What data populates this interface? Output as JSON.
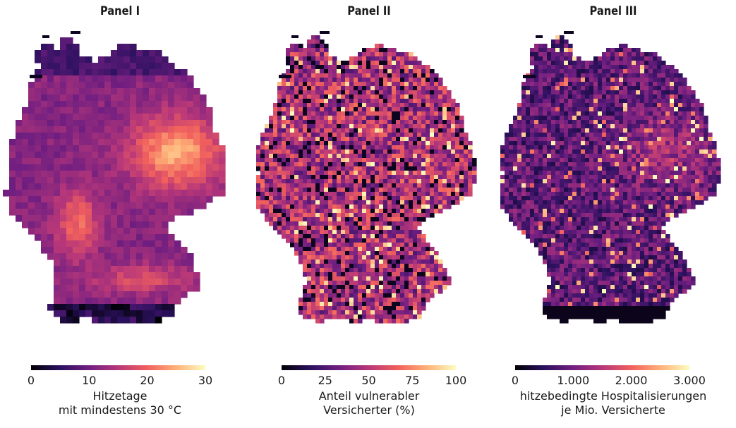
{
  "colors": {
    "scale": [
      "#000004",
      "#2c115f",
      "#721f81",
      "#b73779",
      "#f1605d",
      "#feb078",
      "#fcfdbf"
    ]
  },
  "panels": [
    {
      "title": "Panel I",
      "legend": {
        "ticks": [
          "0",
          "10",
          "20",
          "30"
        ],
        "label_line1": "Hitzetage",
        "label_line2": "mit mindestens 30 °C"
      },
      "map_profile": "smooth-heat"
    },
    {
      "title": "Panel II",
      "legend": {
        "ticks": [
          "0",
          "25",
          "50",
          "75",
          "100"
        ],
        "label_line1": "Anteil vulnerabler",
        "label_line2": "Versicherter (%)"
      },
      "map_profile": "patchy"
    },
    {
      "title": "Panel III",
      "legend": {
        "ticks": [
          "0",
          "1.000",
          "2.000",
          "3.000"
        ],
        "label_line1": "hitzebedingte Hospitalisierungen",
        "label_line2": "je Mio. Versicherte"
      },
      "map_profile": "dark-patchy"
    }
  ]
}
